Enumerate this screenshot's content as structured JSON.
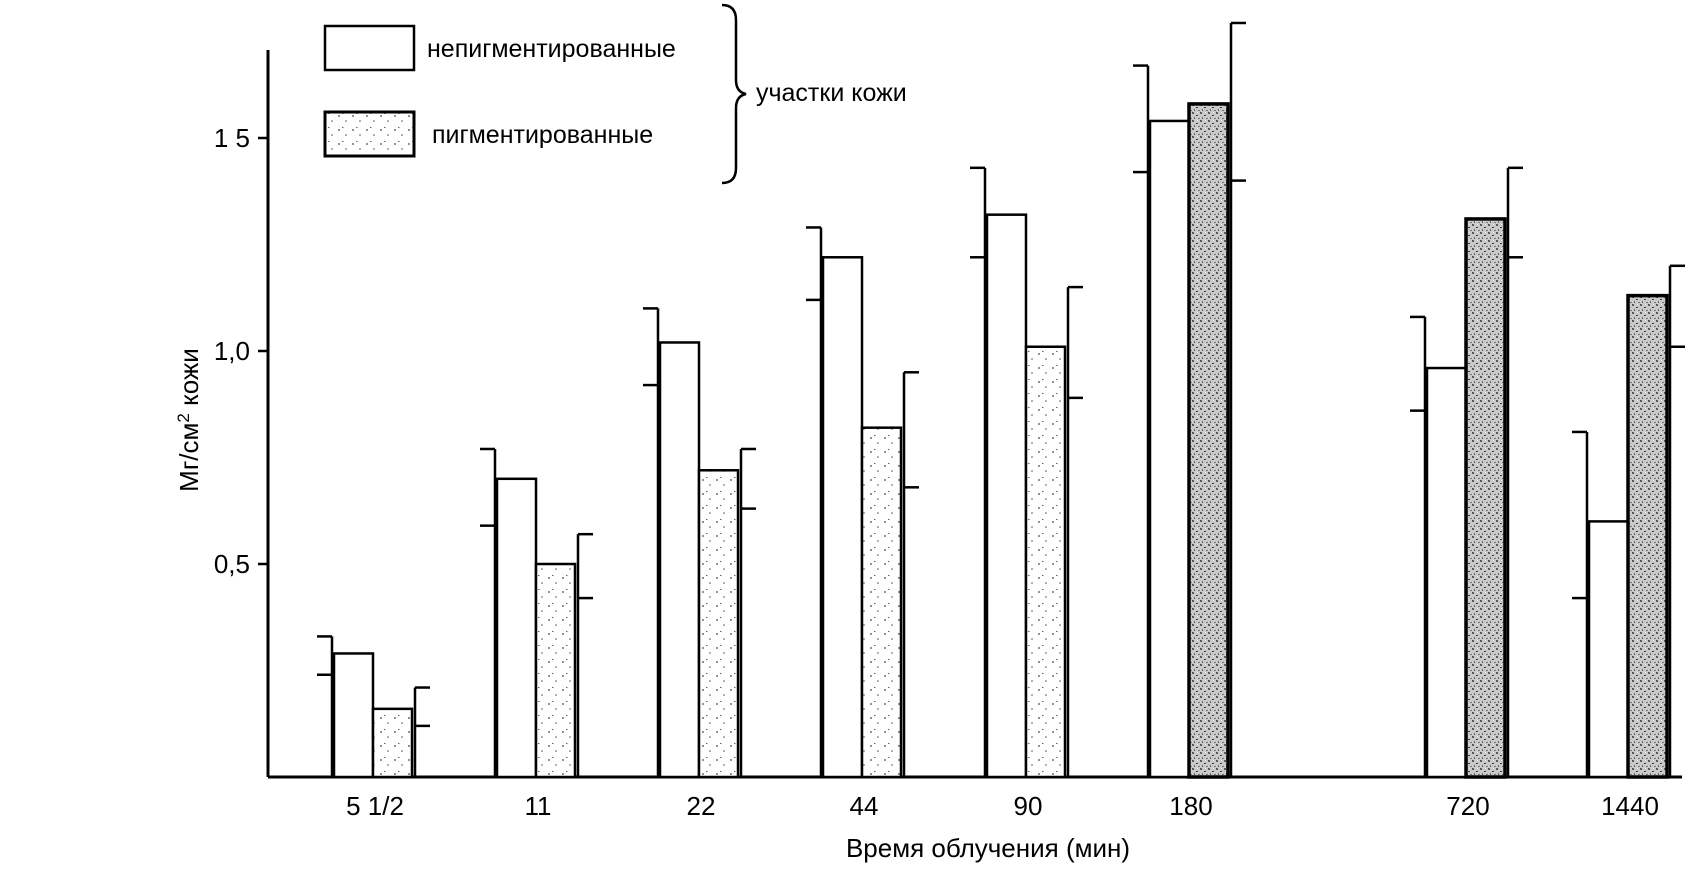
{
  "chart_data": {
    "type": "bar",
    "title": "",
    "xlabel": "Время облучения  (мин)",
    "ylabel": "Мг/см² кожи",
    "ylabel_parts": {
      "main": "Мг/см",
      "sup": "2",
      "rest": " кожи"
    },
    "ylim": [
      0,
      1.75
    ],
    "yticks": [
      {
        "value": 0.5,
        "label": "0,5"
      },
      {
        "value": 1.0,
        "label": "1,0"
      },
      {
        "value": 1.5,
        "label": "1 5"
      }
    ],
    "categories": [
      "5 1/2",
      "11",
      "22",
      "44",
      "90",
      "180",
      "720",
      "1440"
    ],
    "series": [
      {
        "name": "непигментированные",
        "style": "white",
        "values": [
          0.29,
          0.7,
          1.02,
          1.22,
          1.32,
          1.54,
          0.96,
          0.6
        ],
        "error_low": [
          0.24,
          0.59,
          0.92,
          1.12,
          1.22,
          1.42,
          0.86,
          0.42
        ],
        "error_high": [
          0.33,
          0.77,
          1.1,
          1.29,
          1.43,
          1.67,
          1.08,
          0.81
        ]
      },
      {
        "name": "пигментированные",
        "style": "stippled",
        "values": [
          0.16,
          0.5,
          0.72,
          0.82,
          1.01,
          1.58,
          1.31,
          1.13
        ],
        "error_low": [
          0.12,
          0.42,
          0.63,
          0.68,
          0.89,
          1.4,
          1.22,
          1.01
        ],
        "error_high": [
          0.21,
          0.57,
          0.77,
          0.95,
          1.15,
          1.77,
          1.43,
          1.2
        ]
      }
    ],
    "legend": {
      "position": "top-left",
      "group_label": "участки кожи"
    },
    "grid": false
  }
}
